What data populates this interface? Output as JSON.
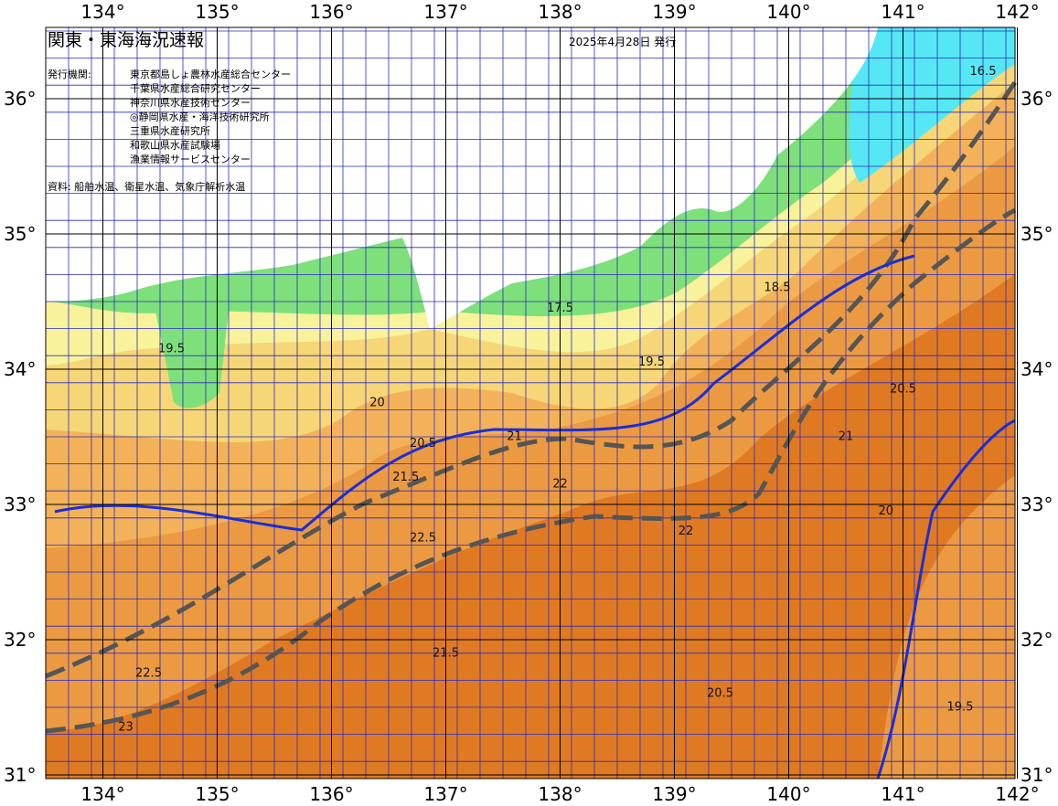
{
  "header": {
    "title": "関東・東海海況速報",
    "date": "2025年4月28日 発行",
    "agencies_label": "発行機関:",
    "agencies": [
      "東京都島しょ農林水産総合センター",
      "千葉県水産総合研究センター",
      "神奈川県水産技術センター",
      "◎静岡県水産・海洋技術研究所",
      "三重県水産研究所",
      "和歌山県水産試験場",
      "漁業情報サービスセンター"
    ],
    "sources": "資料: 船舶水温、衛星水温、気象庁解析水温"
  },
  "map": {
    "lon_labels": [
      "134°",
      "135°",
      "136°",
      "137°",
      "138°",
      "139°",
      "140°",
      "141°",
      "142°"
    ],
    "lat_labels": [
      "36°",
      "35°",
      "34°",
      "33°",
      "32°",
      "31°"
    ],
    "contour_labels": [
      {
        "text": "19.5",
        "lon": 134.6,
        "lat": 34.15
      },
      {
        "text": "20",
        "lon": 136.4,
        "lat": 33.75
      },
      {
        "text": "20.5",
        "lon": 136.8,
        "lat": 33.45
      },
      {
        "text": "21.5",
        "lon": 136.65,
        "lat": 33.2
      },
      {
        "text": "22.5",
        "lon": 136.8,
        "lat": 32.75
      },
      {
        "text": "22",
        "lon": 138.0,
        "lat": 33.15
      },
      {
        "text": "21",
        "lon": 137.6,
        "lat": 33.5
      },
      {
        "text": "17.5",
        "lon": 138.0,
        "lat": 34.45
      },
      {
        "text": "19.5",
        "lon": 138.8,
        "lat": 34.05
      },
      {
        "text": "20.5",
        "lon": 141.0,
        "lat": 33.85
      },
      {
        "text": "21",
        "lon": 140.5,
        "lat": 33.5
      },
      {
        "text": "20",
        "lon": 140.85,
        "lat": 32.95
      },
      {
        "text": "22.5",
        "lon": 134.4,
        "lat": 31.75
      },
      {
        "text": "23",
        "lon": 134.2,
        "lat": 31.35
      },
      {
        "text": "21.5",
        "lon": 137.0,
        "lat": 31.9
      },
      {
        "text": "20.5",
        "lon": 139.4,
        "lat": 31.6
      },
      {
        "text": "19.5",
        "lon": 141.5,
        "lat": 31.5
      },
      {
        "text": "16.5",
        "lon": 141.7,
        "lat": 36.2
      },
      {
        "text": "18.5",
        "lon": 139.9,
        "lat": 34.6
      },
      {
        "text": "22",
        "lon": 139.1,
        "lat": 32.8
      }
    ]
  }
}
